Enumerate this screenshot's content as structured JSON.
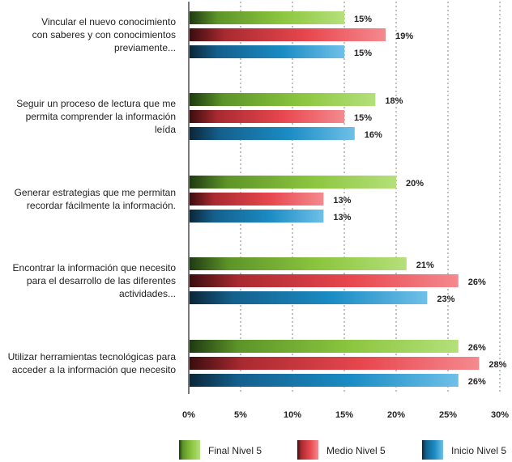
{
  "chart_data": {
    "type": "bar",
    "orientation": "horizontal",
    "categories": [
      [
        "Vincular el nuevo conocimiento",
        "con saberes y con conocimientos",
        "previamente..."
      ],
      [
        "Seguir un proceso de lectura que me",
        "permita comprender la información",
        "leída"
      ],
      [
        "Generar estrategias que me permitan",
        "recordar fácilmente la información."
      ],
      [
        "Encontrar la información que necesito",
        "para el desarrollo de las diferentes",
        "actividades..."
      ],
      [
        "Utilizar herramientas tecnológicas para",
        "acceder a la información que necesito"
      ]
    ],
    "series": [
      {
        "name": "Final Nivel 5",
        "color": "#8cc63f",
        "values": [
          15,
          18,
          20,
          21,
          26
        ],
        "labels": [
          "15%",
          "18%",
          "20%",
          "21%",
          "26%"
        ]
      },
      {
        "name": "Medio Nivel 5",
        "color": "#e8474e",
        "values": [
          19,
          15,
          13,
          26,
          28
        ],
        "labels": [
          "19%",
          "15%",
          "13%",
          "26%",
          "28%"
        ]
      },
      {
        "name": "Inicio Nivel 5",
        "color": "#1b8cc4",
        "values": [
          15,
          16,
          13,
          23,
          26
        ],
        "labels": [
          "15%",
          "16%",
          "13%",
          "23%",
          "26%"
        ]
      }
    ],
    "x_ticks": [
      "0%",
      "5%",
      "10%",
      "15%",
      "20%",
      "25%",
      "30%"
    ],
    "xlim": [
      0,
      30
    ],
    "grid": true,
    "legend_position": "bottom"
  }
}
